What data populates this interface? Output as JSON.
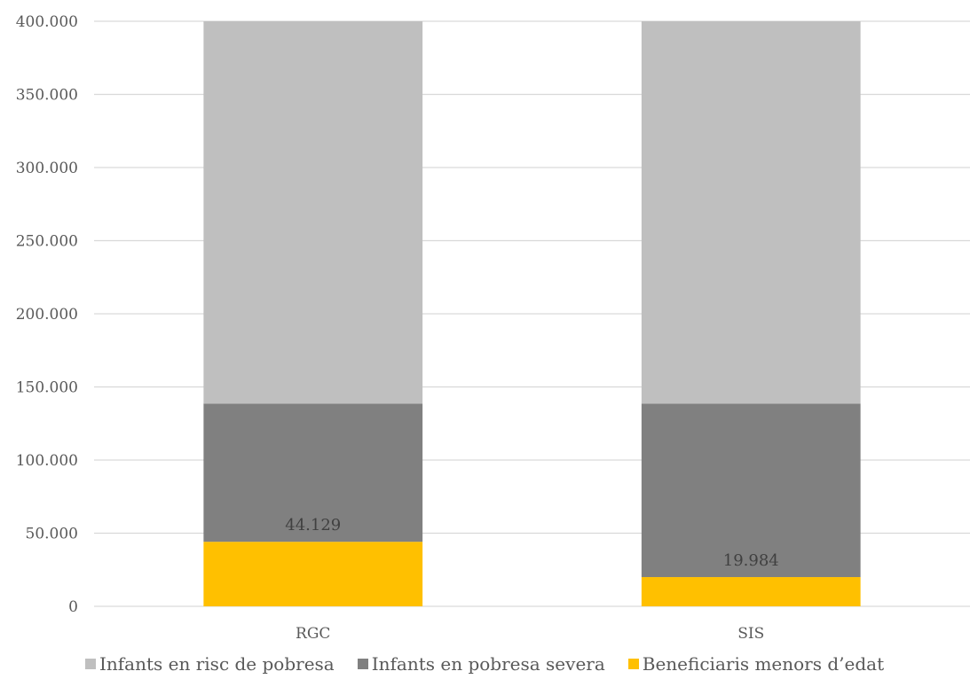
{
  "chart_data": {
    "type": "bar",
    "stacked": true,
    "categories": [
      "RGC",
      "SIS"
    ],
    "series": [
      {
        "name": "Beneficiaris menors d’edat",
        "color": "#FFC000",
        "values": [
          44129,
          19984
        ]
      },
      {
        "name": "Infants en pobresa severa",
        "color": "#808080",
        "values": [
          94500,
          118645
        ]
      },
      {
        "name": "Infants en risc de pobresa",
        "color": "#BFBFBF",
        "values": [
          261371,
          261371
        ]
      }
    ],
    "data_labels": [
      "44.129",
      "19.984"
    ],
    "yticks": [
      "0",
      "50.000",
      "100.000",
      "150.000",
      "200.000",
      "250.000",
      "300.000",
      "350.000",
      "400.000"
    ],
    "ylim": [
      0,
      400000
    ],
    "grid": true,
    "legend_position": "bottom",
    "legend_order": [
      "Infants en risc de pobresa",
      "Infants en pobresa severa",
      "Beneficiaris menors d’edat"
    ]
  }
}
